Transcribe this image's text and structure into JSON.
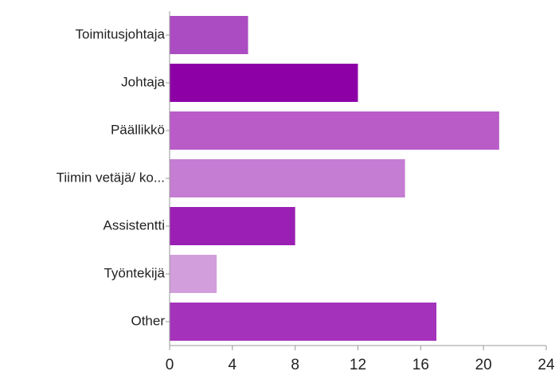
{
  "chart_data": {
    "type": "bar",
    "orientation": "horizontal",
    "categories": [
      "Toimitusjohtaja",
      "Johtaja",
      "Päällikkö",
      "Tiimin vetäjä/ ko...",
      "Assistentti",
      "Työntekijä",
      "Other"
    ],
    "values": [
      5,
      12,
      21,
      15,
      8,
      3,
      17
    ],
    "colors": [
      "#ab4cc2",
      "#8c00a6",
      "#b95cc8",
      "#c57dd3",
      "#9b1fb4",
      "#d39edc",
      "#a432bb"
    ],
    "xlim": [
      0,
      24
    ],
    "xticks": [
      0,
      4,
      8,
      12,
      16,
      20,
      24
    ],
    "grid": false
  }
}
